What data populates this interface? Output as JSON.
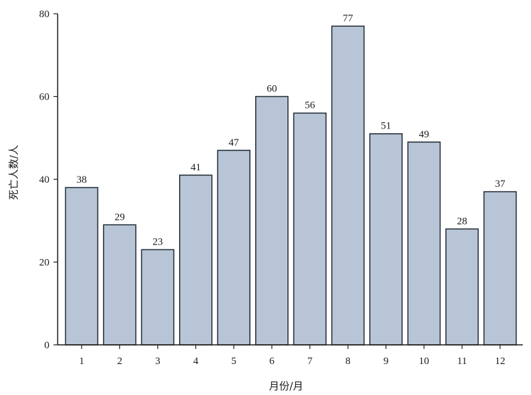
{
  "chart_data": {
    "type": "bar",
    "categories": [
      "1",
      "2",
      "3",
      "4",
      "5",
      "6",
      "7",
      "8",
      "9",
      "10",
      "11",
      "12"
    ],
    "values": [
      38,
      29,
      23,
      41,
      47,
      60,
      56,
      77,
      51,
      49,
      28,
      37
    ],
    "title": "",
    "xlabel": "月份/月",
    "ylabel": "死亡人数/人",
    "ylim": [
      0,
      80
    ],
    "yticks": [
      0,
      20,
      40,
      60,
      80
    ],
    "grid": false,
    "data_labels": true,
    "colors": {
      "bar_fill": "#b8c5d6",
      "bar_stroke": "#1f2a33"
    }
  }
}
